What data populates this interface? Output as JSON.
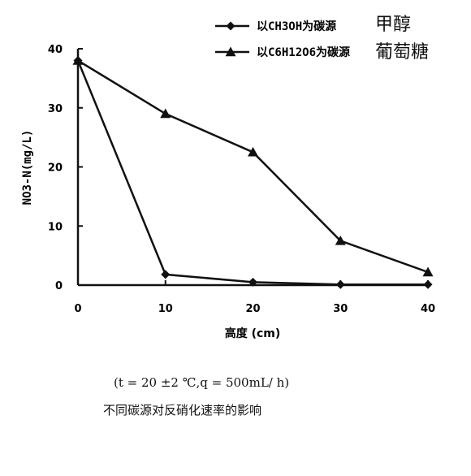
{
  "chart_data": {
    "type": "line",
    "x": [
      0,
      10,
      20,
      30,
      40
    ],
    "xlabel": "高度 (cm)",
    "ylabel": "NO3-N(mg/L)",
    "xlim": [
      0,
      40
    ],
    "ylim": [
      0,
      40
    ],
    "xticks": [
      "0",
      "10",
      "20",
      "30",
      "40"
    ],
    "yticks": [
      "0",
      "10",
      "20",
      "30",
      "40"
    ],
    "grid": false,
    "legend_position": "top-right",
    "series": [
      {
        "name": "以CH3OH为碳源",
        "annotation": "甲醇",
        "marker": "diamond",
        "color": "#111111",
        "values": [
          38,
          1.8,
          0.5,
          0.1,
          0.1
        ]
      },
      {
        "name": "以C6H12O6为碳源",
        "annotation": "葡萄糖",
        "marker": "triangle",
        "color": "#111111",
        "values": [
          38,
          29,
          22.5,
          7.5,
          2.2
        ]
      }
    ]
  },
  "caption": {
    "conditions": "(t = 20 ±2 ℃,q = 500mL/ h)",
    "title": "不同碳源对反硝化速率的影响"
  }
}
